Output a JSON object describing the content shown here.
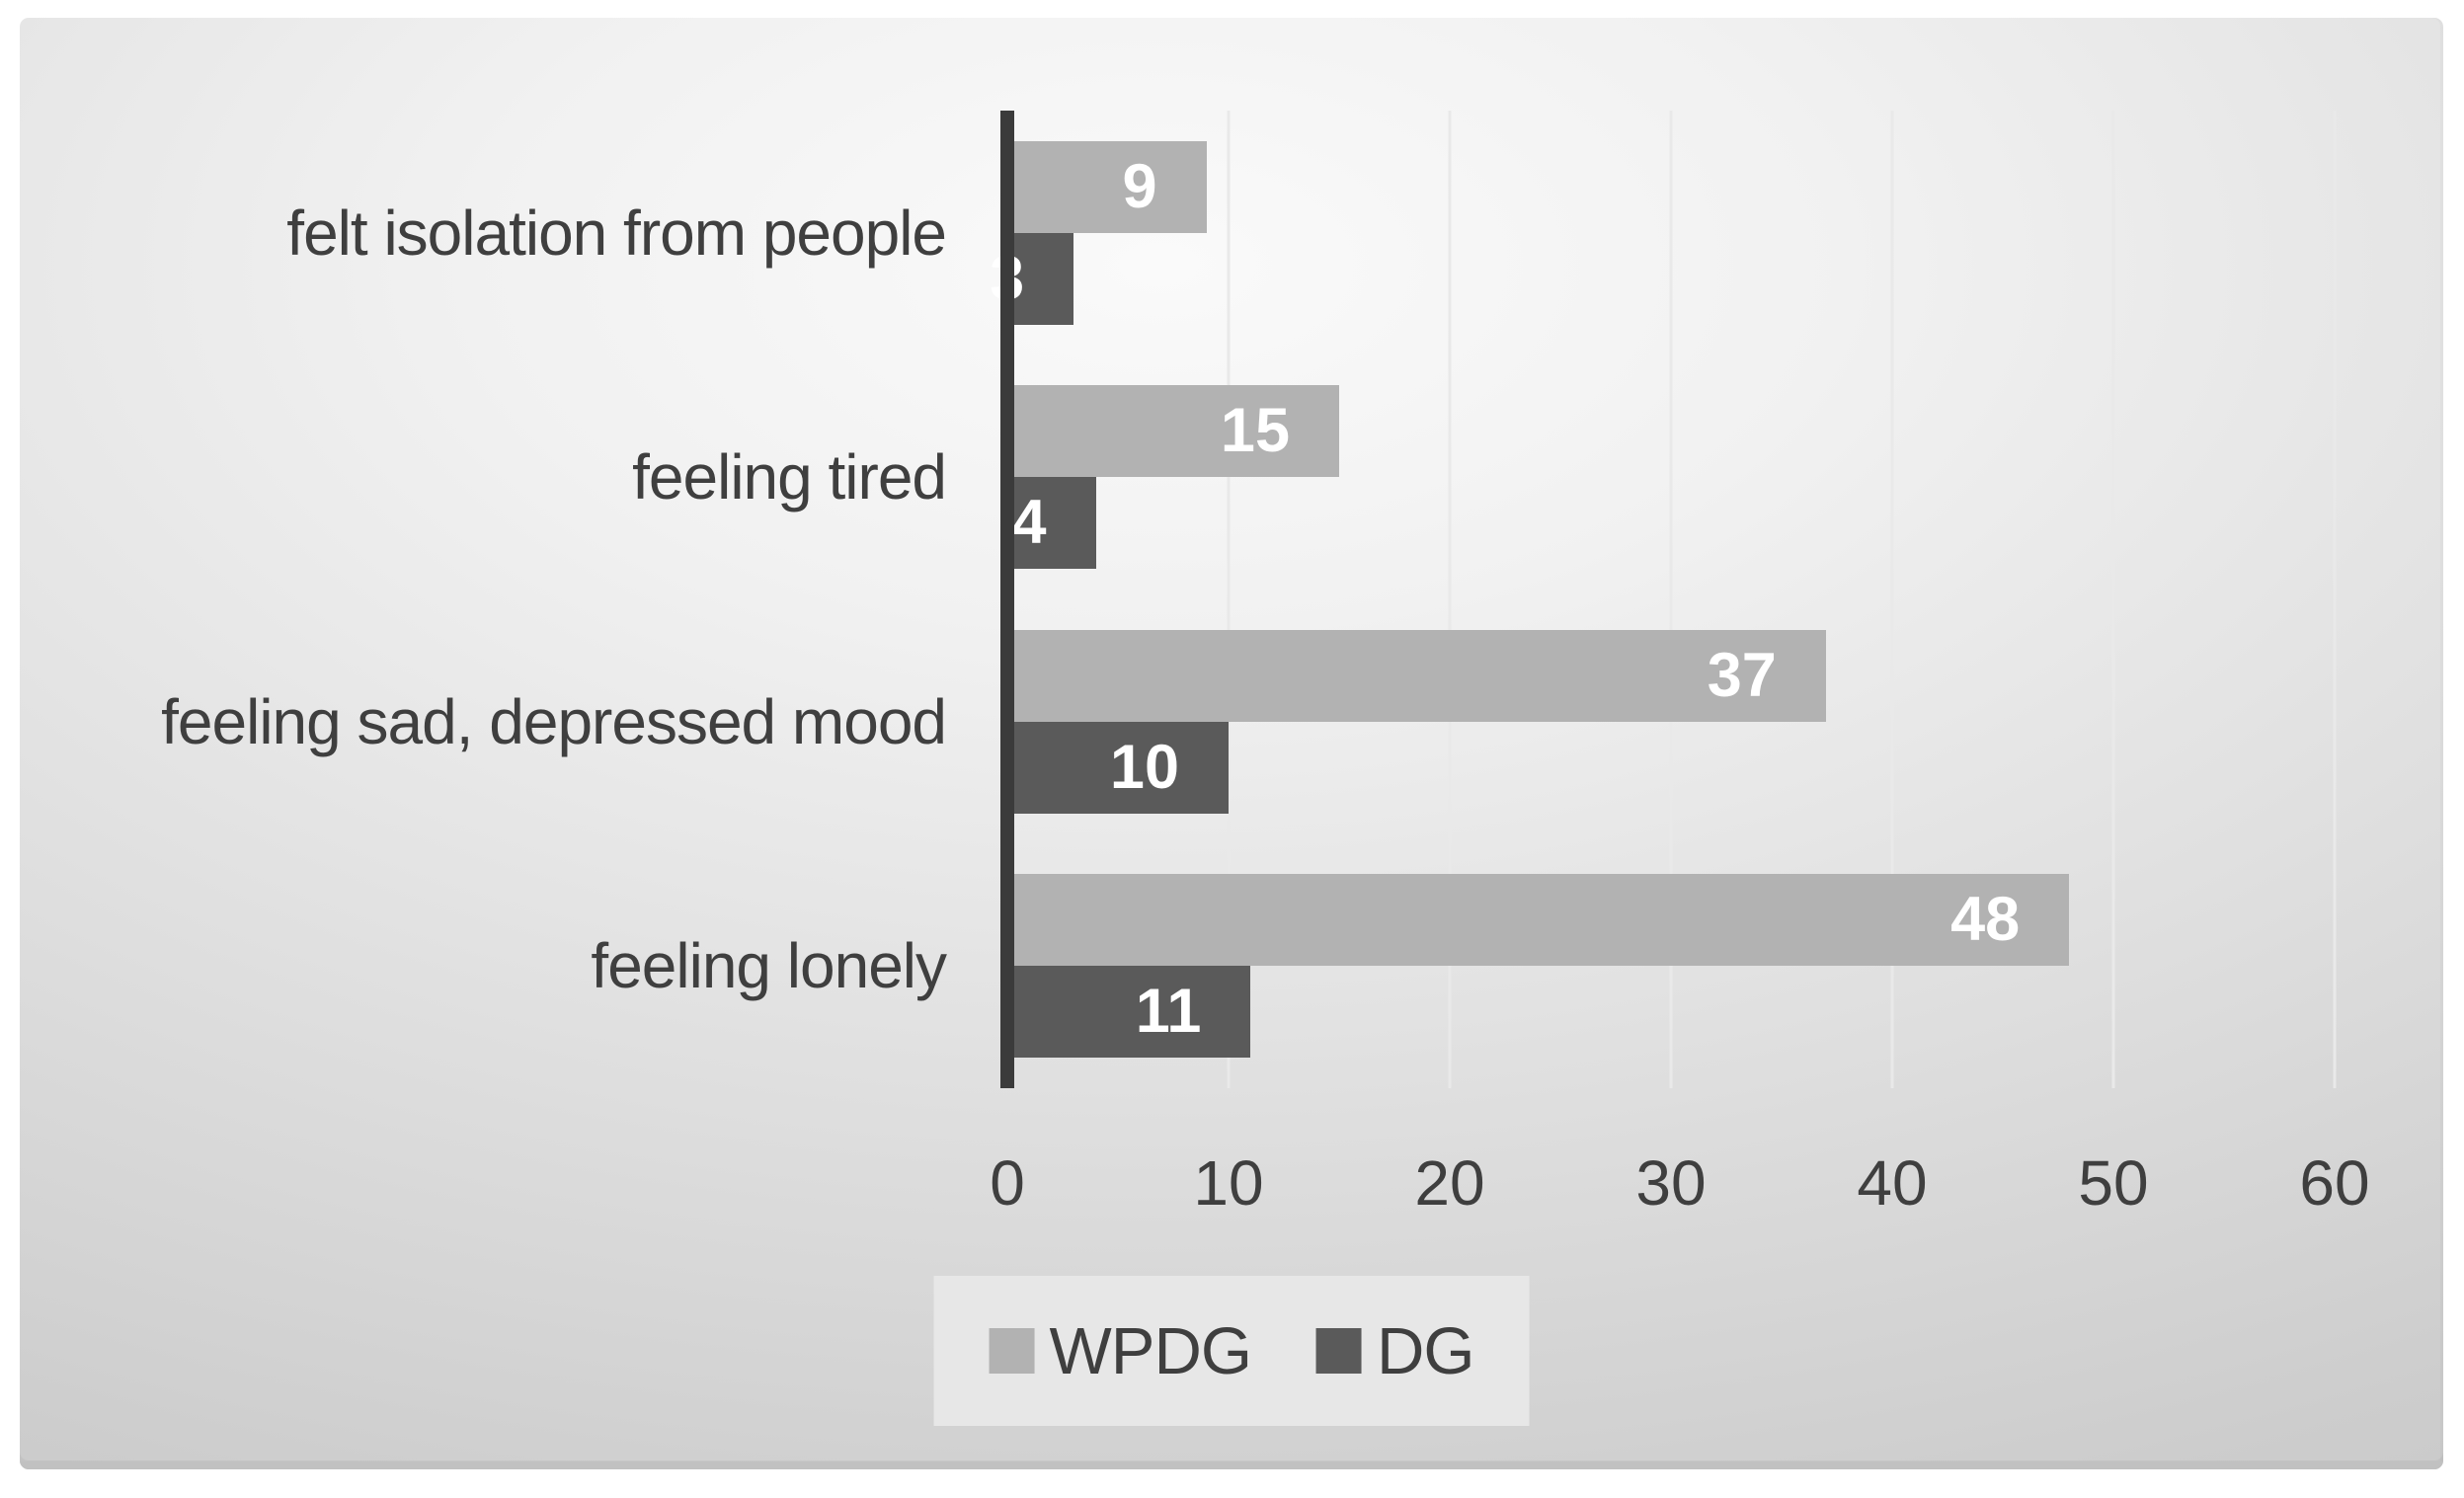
{
  "page": {
    "background": "#ffffff"
  },
  "panel": {
    "background_center": "#fafafa",
    "background_edge": "#c3c3c3",
    "bottom_edge_color": "#c1c1c1"
  },
  "chart_data": {
    "type": "bar",
    "orientation": "horizontal",
    "title": "",
    "categories_top_to_bottom": [
      "felt isolation from people",
      "feeling tired",
      "feeling sad, depressed mood",
      "feeling lonely"
    ],
    "series": [
      {
        "name": "WPDG",
        "color": "#b2b2b2",
        "values": [
          9,
          15,
          37,
          48
        ]
      },
      {
        "name": "DG",
        "color": "#5a5a5a",
        "values": [
          3,
          4,
          10,
          11
        ]
      }
    ],
    "x_ticks": [
      0,
      10,
      20,
      30,
      40,
      50,
      60
    ],
    "xlim": [
      0,
      60
    ],
    "grid": true,
    "gridline_color": "#e9e9e9",
    "axis_color": "#3b3b3b",
    "label_color": "#3f3f3f",
    "data_label_color": "#ffffff",
    "data_label_position": "inside-end",
    "legend": {
      "position": "bottom-center",
      "background": "#e7e7e7",
      "entries": [
        "WPDG",
        "DG"
      ]
    }
  }
}
